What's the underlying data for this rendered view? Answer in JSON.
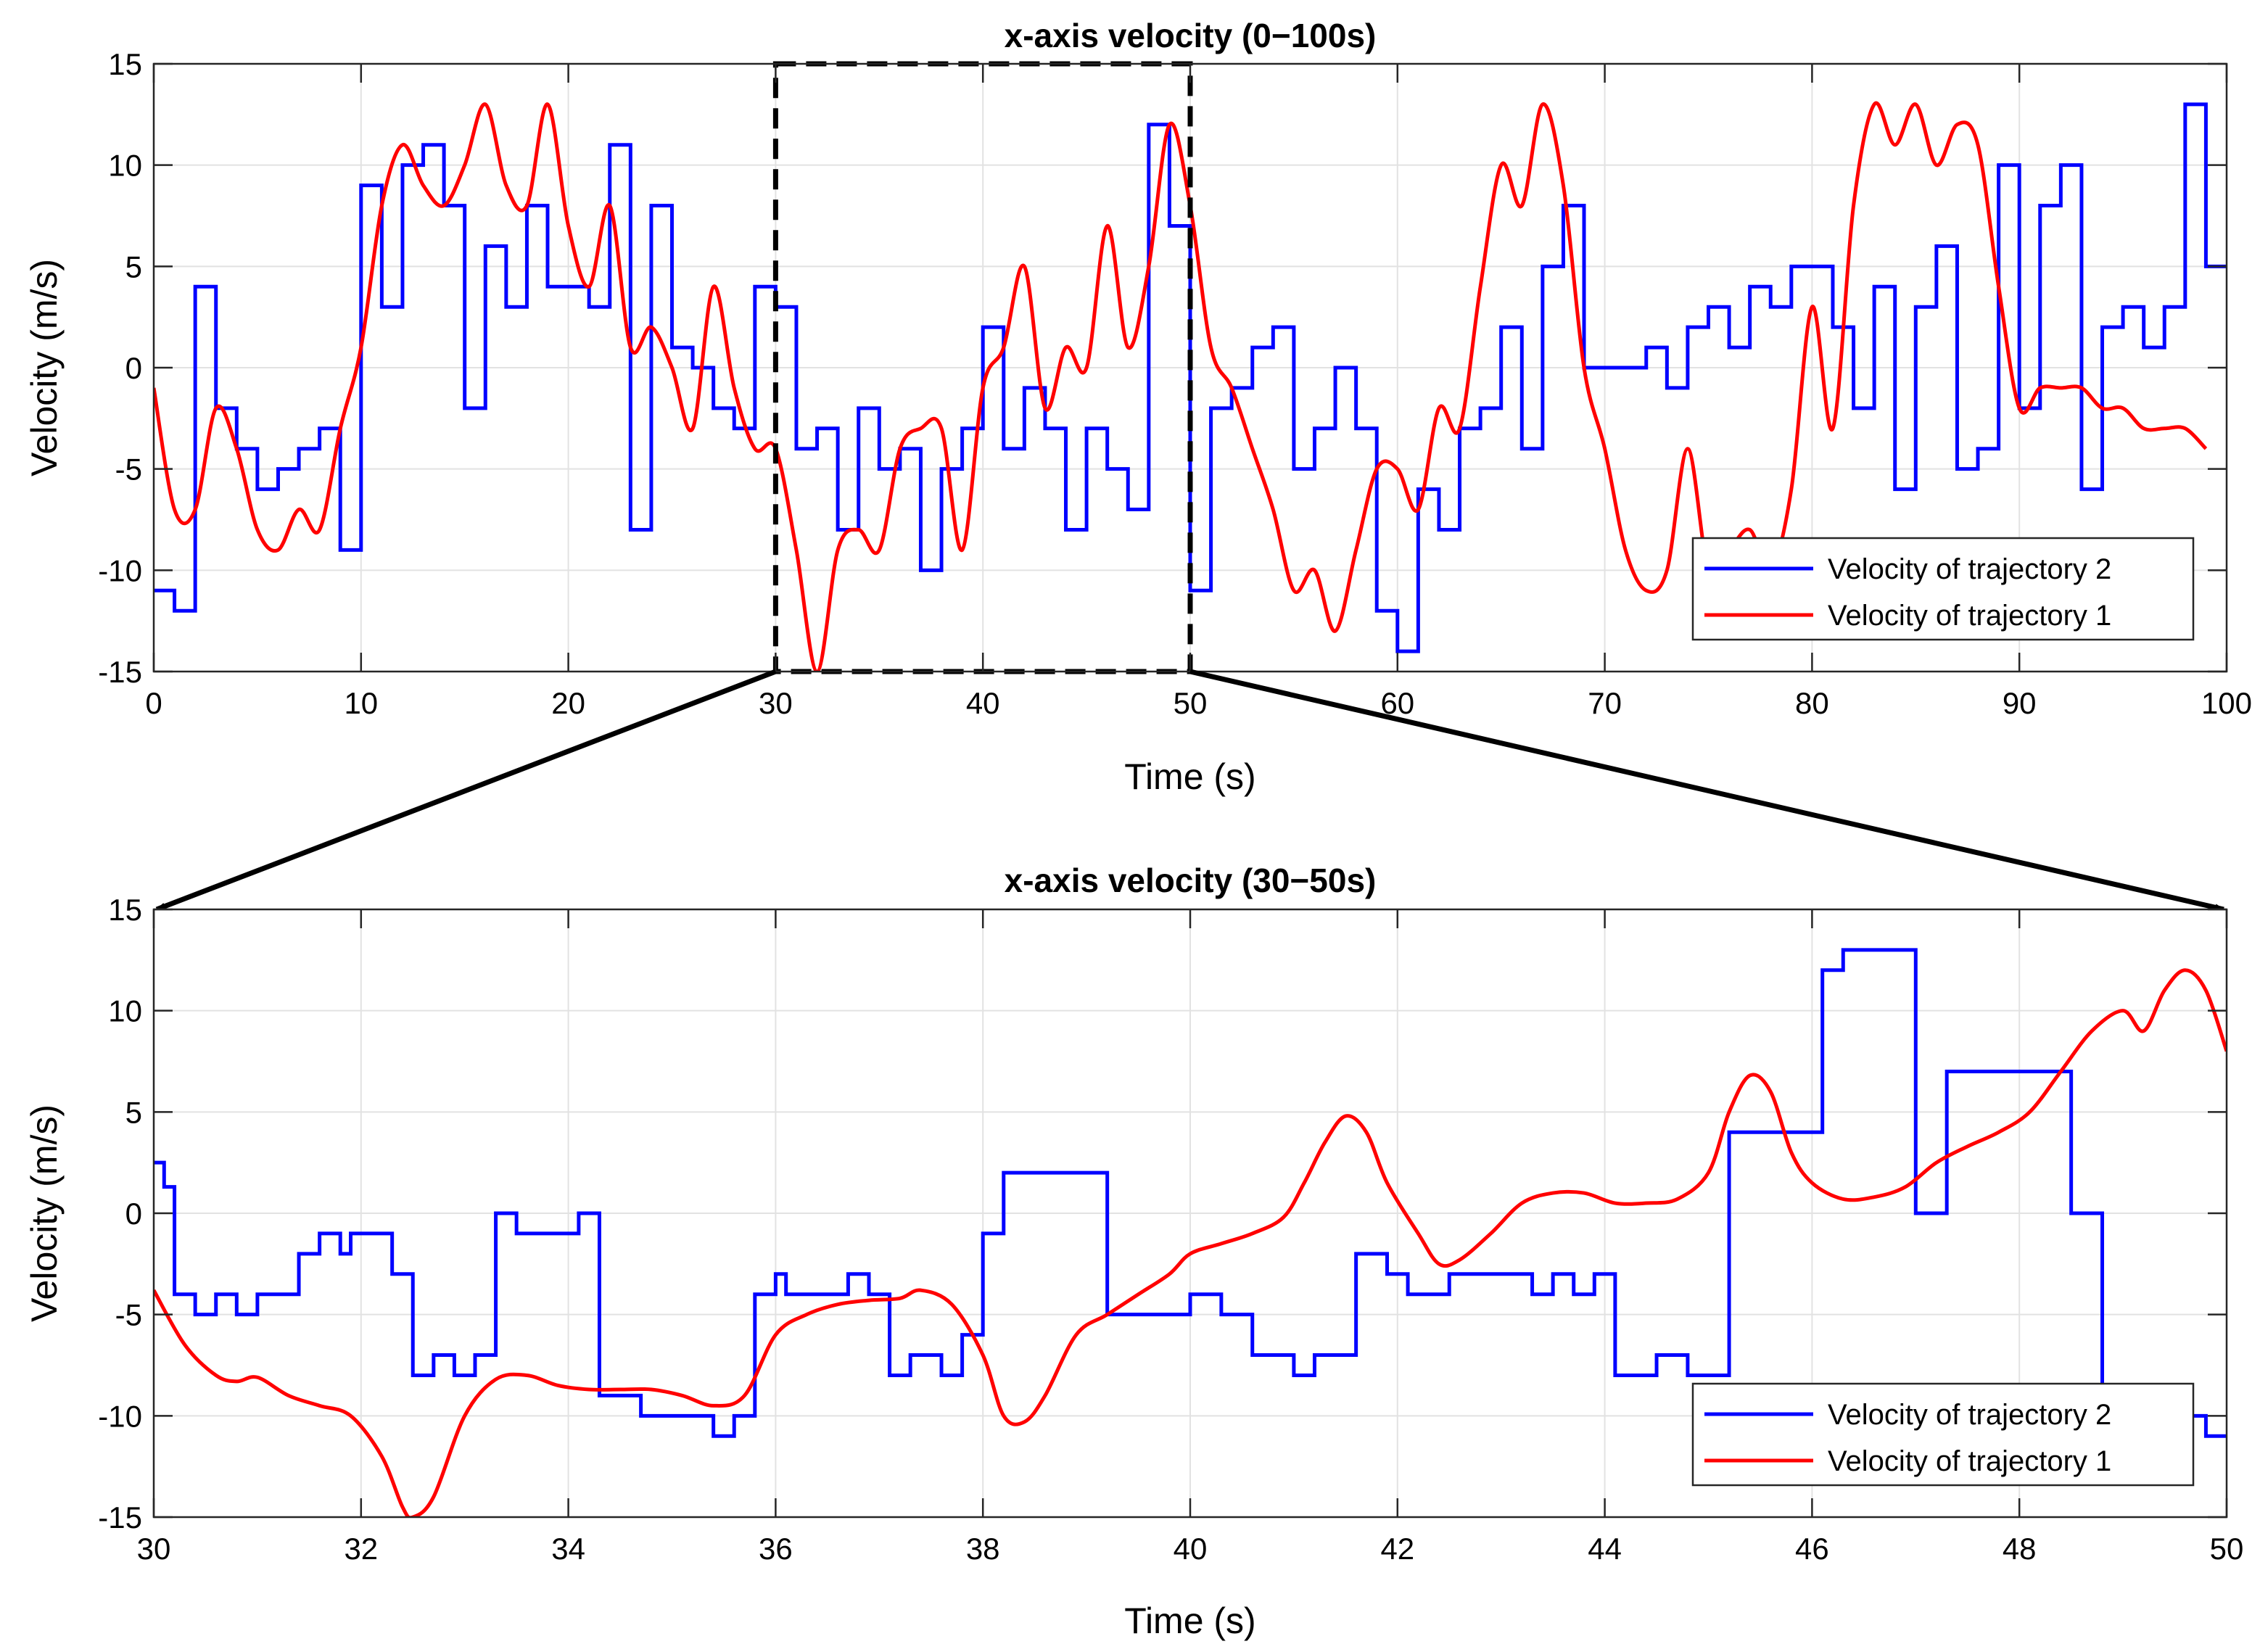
{
  "chart_data": [
    {
      "type": "line",
      "title": "x-axis velocity (0−100s)",
      "xlabel": "Time (s)",
      "ylabel": "Velocity (m/s)",
      "xlim": [
        0,
        100
      ],
      "ylim": [
        -15,
        15
      ],
      "xticks": [
        0,
        10,
        20,
        30,
        40,
        50,
        60,
        70,
        80,
        90,
        100
      ],
      "yticks": [
        15,
        10,
        5,
        0,
        -5,
        -10,
        -15
      ],
      "grid": true,
      "legend_position": "bottom-right",
      "zoom_region": {
        "x": [
          30,
          50
        ],
        "y": [
          -15,
          15
        ],
        "label": "zoomed into lower chart"
      },
      "series": [
        {
          "name": "Velocity of trajectory 2",
          "color": "#0000ff",
          "style": "step",
          "x": [
            0,
            1,
            2,
            3,
            4,
            5,
            6,
            7,
            8,
            9,
            10,
            11,
            12,
            13,
            14,
            15,
            16,
            17,
            18,
            19,
            20,
            21,
            22,
            23,
            24,
            25,
            26,
            27,
            28,
            29,
            30,
            31,
            32,
            33,
            34,
            35,
            36,
            37,
            38,
            39,
            40,
            41,
            42,
            43,
            44,
            45,
            46,
            47,
            48,
            49,
            50,
            51,
            52,
            53,
            54,
            55,
            56,
            57,
            58,
            59,
            60,
            61,
            62,
            63,
            64,
            65,
            66,
            67,
            68,
            69,
            70,
            71,
            72,
            73,
            74,
            75,
            76,
            77,
            78,
            79,
            80,
            81,
            82,
            83,
            84,
            85,
            86,
            87,
            88,
            89,
            90,
            91,
            92,
            93,
            94,
            95,
            96,
            97,
            98,
            99
          ],
          "values": [
            -11,
            -12,
            4,
            -2,
            -4,
            -6,
            -5,
            -4,
            -3,
            -9,
            9,
            3,
            10,
            11,
            8,
            -2,
            6,
            3,
            8,
            4,
            4,
            3,
            11,
            -8,
            8,
            1,
            0,
            -2,
            -3,
            4,
            3,
            -4,
            -3,
            -8,
            -2,
            -5,
            -4,
            -10,
            -5,
            -3,
            2,
            -4,
            -1,
            -3,
            -8,
            -3,
            -5,
            -7,
            12,
            7,
            -11,
            -2,
            -1,
            1,
            2,
            -5,
            -3,
            0,
            -3,
            -12,
            -14,
            -6,
            -8,
            -3,
            -2,
            2,
            -4,
            5,
            8,
            0,
            0,
            0,
            1,
            -1,
            2,
            3,
            1,
            4,
            3,
            5,
            5,
            2,
            -2,
            4,
            -6,
            3,
            6,
            -5,
            -4,
            10,
            -2,
            8,
            10,
            -6,
            2,
            3,
            1,
            3,
            13,
            5
          ]
        },
        {
          "name": "Velocity of trajectory 1",
          "color": "#ff0000",
          "style": "smooth",
          "x": [
            0,
            1,
            2,
            3,
            4,
            5,
            6,
            7,
            8,
            9,
            10,
            11,
            12,
            13,
            14,
            15,
            16,
            17,
            18,
            19,
            20,
            21,
            22,
            23,
            24,
            25,
            26,
            27,
            28,
            29,
            30,
            31,
            32,
            33,
            34,
            35,
            36,
            37,
            38,
            39,
            40,
            41,
            42,
            43,
            44,
            45,
            46,
            47,
            48,
            49,
            50,
            51,
            52,
            53,
            54,
            55,
            56,
            57,
            58,
            59,
            60,
            61,
            62,
            63,
            64,
            65,
            66,
            67,
            68,
            69,
            70,
            71,
            72,
            73,
            74,
            75,
            76,
            77,
            78,
            79,
            80,
            81,
            82,
            83,
            84,
            85,
            86,
            87,
            88,
            89,
            90,
            91,
            92,
            93,
            94,
            95,
            96,
            97,
            98,
            99
          ],
          "values": [
            -1,
            -7,
            -7,
            -2,
            -4,
            -8,
            -9,
            -7,
            -8,
            -3,
            1,
            8,
            11,
            9,
            8,
            10,
            13,
            9,
            8,
            13,
            7,
            4,
            8,
            1,
            2,
            0,
            -3,
            4,
            -1,
            -4,
            -4,
            -9,
            -15,
            -9,
            -8,
            -9,
            -4,
            -3,
            -3,
            -9,
            -1,
            1,
            5,
            -2,
            1,
            0,
            7,
            1,
            5,
            12,
            8,
            1,
            -1,
            -4,
            -7,
            -11,
            -10,
            -13,
            -9,
            -5,
            -5,
            -7,
            -2,
            -3,
            4,
            10,
            8,
            13,
            9,
            0,
            -4,
            -9,
            -11,
            -10,
            -4,
            -10,
            -9,
            -8,
            -10,
            -6,
            3,
            -3,
            8,
            13,
            11,
            13,
            10,
            12,
            11,
            4,
            -2,
            -1,
            -1,
            -1,
            -2,
            -2,
            -3,
            -3,
            -3,
            -4
          ]
        }
      ],
      "legend": [
        "Velocity of trajectory 2",
        "Velocity of trajectory 1"
      ]
    },
    {
      "type": "line",
      "title": "x-axis velocity (30−50s)",
      "xlabel": "Time (s)",
      "ylabel": "Velocity (m/s)",
      "xlim": [
        30,
        50
      ],
      "ylim": [
        -15,
        15
      ],
      "xticks": [
        30,
        32,
        34,
        36,
        38,
        40,
        42,
        44,
        46,
        48,
        50
      ],
      "yticks": [
        15,
        10,
        5,
        0,
        -5,
        -10,
        -15
      ],
      "grid": true,
      "legend_position": "bottom-right",
      "series": [
        {
          "name": "Velocity of trajectory 2",
          "color": "#0000ff",
          "style": "step",
          "x": [
            30.0,
            30.1,
            30.2,
            30.4,
            30.6,
            30.8,
            31.0,
            31.2,
            31.4,
            31.6,
            31.8,
            31.9,
            32.1,
            32.3,
            32.5,
            32.7,
            32.9,
            33.1,
            33.3,
            33.5,
            33.7,
            33.9,
            34.1,
            34.3,
            34.5,
            34.7,
            34.9,
            35.0,
            35.2,
            35.4,
            35.6,
            35.8,
            36.0,
            36.1,
            36.3,
            36.5,
            36.7,
            36.9,
            37.1,
            37.3,
            37.5,
            37.6,
            37.8,
            38.0,
            38.2,
            38.4,
            38.6,
            38.9,
            39.2,
            39.5,
            39.8,
            40.0,
            40.3,
            40.6,
            40.9,
            41.0,
            41.2,
            41.4,
            41.6,
            41.9,
            42.1,
            42.3,
            42.5,
            42.7,
            42.9,
            43.1,
            43.3,
            43.5,
            43.7,
            43.9,
            44.1,
            44.3,
            44.5,
            44.6,
            44.8,
            45.0,
            45.2,
            45.4,
            45.6,
            45.8,
            45.9,
            46.1,
            46.3,
            46.5,
            46.7,
            46.9,
            47.0,
            47.3,
            47.6,
            47.9,
            48.1,
            48.3,
            48.5,
            48.8,
            49.1,
            49.4,
            49.6,
            49.8,
            50.0
          ],
          "values": [
            2.5,
            1.3,
            -4,
            -5,
            -4,
            -5,
            -4,
            -4,
            -2,
            -1,
            -2,
            -1,
            -1,
            -3,
            -8,
            -7,
            -8,
            -7,
            0,
            -1,
            -1,
            -1,
            0,
            -9,
            -9,
            -10,
            -10,
            -10,
            -10,
            -11,
            -10,
            -4,
            -3,
            -4,
            -4,
            -4,
            -3,
            -4,
            -8,
            -7,
            -7,
            -8,
            -6,
            -1,
            2,
            2,
            2,
            2,
            -5,
            -5,
            -5,
            -4,
            -5,
            -7,
            -7,
            -8,
            -7,
            -7,
            -2,
            -3,
            -4,
            -4,
            -3,
            -3,
            -3,
            -3,
            -4,
            -3,
            -4,
            -3,
            -8,
            -8,
            -7,
            -7,
            -8,
            -8,
            4,
            4,
            4,
            4,
            4,
            12,
            13,
            13,
            13,
            13,
            0,
            7,
            7,
            7,
            7,
            7,
            0,
            -10,
            -10,
            -10,
            -10,
            -11,
            -11
          ]
        },
        {
          "name": "Velocity of trajectory 1",
          "color": "#ff0000",
          "style": "smooth",
          "x": [
            30.0,
            30.3,
            30.6,
            30.8,
            31.0,
            31.3,
            31.6,
            31.9,
            32.2,
            32.4,
            32.5,
            32.7,
            33.0,
            33.3,
            33.6,
            33.9,
            34.2,
            34.5,
            34.8,
            35.1,
            35.4,
            35.7,
            36.0,
            36.3,
            36.6,
            36.9,
            37.2,
            37.4,
            37.7,
            38.0,
            38.2,
            38.4,
            38.6,
            38.9,
            39.2,
            39.5,
            39.8,
            40.0,
            40.3,
            40.6,
            40.9,
            41.1,
            41.3,
            41.5,
            41.7,
            41.9,
            42.2,
            42.4,
            42.6,
            42.9,
            43.2,
            43.5,
            43.8,
            44.1,
            44.4,
            44.7,
            45.0,
            45.2,
            45.4,
            45.6,
            45.8,
            46.0,
            46.3,
            46.6,
            46.9,
            47.2,
            47.5,
            47.8,
            48.1,
            48.4,
            48.7,
            49.0,
            49.2,
            49.4,
            49.6,
            49.8,
            50.0
          ],
          "values": [
            -3.8,
            -6.5,
            -8,
            -8.3,
            -8.1,
            -9,
            -9.5,
            -10,
            -12,
            -14.5,
            -15,
            -14,
            -10,
            -8.2,
            -8,
            -8.5,
            -8.7,
            -8.7,
            -8.7,
            -9,
            -9.5,
            -9,
            -6,
            -5,
            -4.5,
            -4.3,
            -4.2,
            -3.8,
            -4.5,
            -7,
            -10,
            -10.3,
            -9,
            -6,
            -5,
            -4,
            -3,
            -2,
            -1.5,
            -1,
            -0.2,
            1.5,
            3.5,
            4.8,
            4,
            1.5,
            -1,
            -2.5,
            -2.3,
            -1,
            0.5,
            1,
            1,
            0.5,
            0.5,
            0.7,
            2,
            5,
            6.8,
            6,
            3,
            1.5,
            0.7,
            0.8,
            1.3,
            2.5,
            3.3,
            4,
            5,
            7,
            9,
            10,
            9,
            11,
            12,
            11,
            8
          ]
        }
      ],
      "legend": [
        "Velocity of trajectory 2",
        "Velocity of trajectory 1"
      ]
    }
  ]
}
